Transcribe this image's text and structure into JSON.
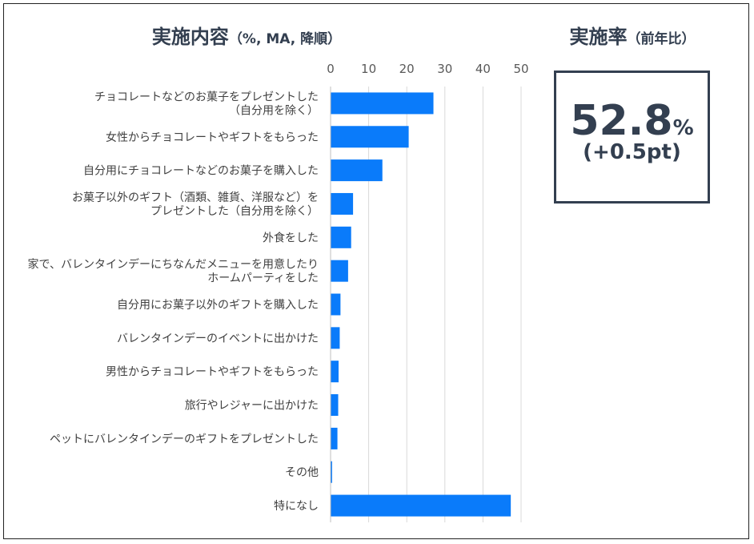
{
  "chart_title": {
    "main": "実施内容",
    "sub": "（%, MA, 降順）"
  },
  "rate_panel": {
    "title": "実施率",
    "title_sub": "（前年比）",
    "value": "52.8",
    "unit": "%",
    "change": "(+0.5pt)"
  },
  "chart_data": {
    "type": "bar",
    "orientation": "horizontal",
    "title": "実施内容（%, MA, 降順）",
    "categories": [
      "チョコレートなどのお菓子をプレゼントした\n（自分用を除く）",
      "女性からチョコレートやギフトをもらった",
      "自分用にチョコレートなどのお菓子を購入した",
      "お菓子以外のギフト（酒類、雑貨、洋服など）を\nプレゼントした（自分用を除く）",
      "外食をした",
      "家で、バレンタインデーにちなんだメニューを用意したり\nホームパーティをした",
      "自分用にお菓子以外のギフトを購入した",
      "バレンタインデーのイベントに出かけた",
      "男性からチョコレートやギフトをもらった",
      "旅行やレジャーに出かけた",
      "ペットにバレンタインデーのギフトをプレゼントした",
      "その他",
      "特になし"
    ],
    "values": [
      27.0,
      20.5,
      13.6,
      5.9,
      5.4,
      4.6,
      2.6,
      2.4,
      2.1,
      2.0,
      1.8,
      0.4,
      47.3
    ],
    "xlim": [
      0,
      50
    ],
    "xticks": [
      0,
      10,
      20,
      30,
      40,
      50
    ],
    "axis_position": "top",
    "grid": true,
    "bar_color": "#0a7bfa"
  }
}
